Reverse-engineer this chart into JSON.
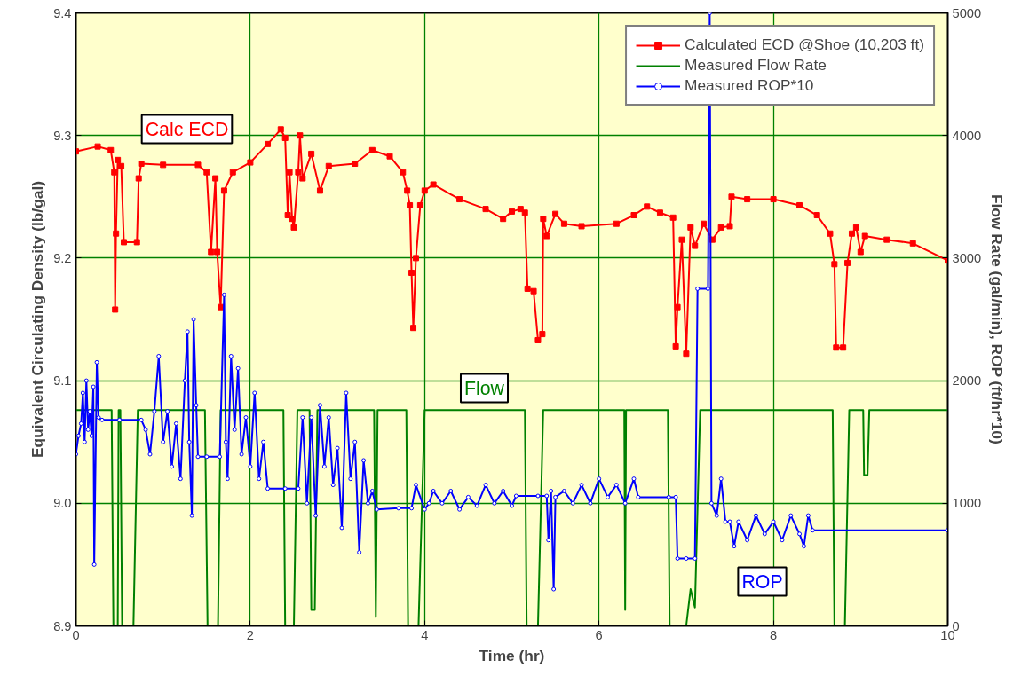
{
  "chart_data": {
    "type": "line",
    "xlabel": "Time (hr)",
    "ylabel": "Equivalent Circulating Density (lb/gal)",
    "y2label": "Flow Rate (gal/min), ROP (ft/hr*10)",
    "xlim": [
      0,
      10
    ],
    "xticks": [
      0,
      2,
      4,
      6,
      8,
      10
    ],
    "ylim": [
      8.9,
      9.4
    ],
    "yticks": [
      {
        "value": 8.9,
        "label": "8.9"
      },
      {
        "value": 9.0,
        "label": "9.0"
      },
      {
        "value": 9.1,
        "label": "9.1"
      },
      {
        "value": 9.2,
        "label": "9.2"
      },
      {
        "value": 9.3,
        "label": "9.3"
      },
      {
        "value": 9.4,
        "label": "9.4"
      }
    ],
    "y2lim": [
      0,
      5000
    ],
    "y2ticks": [
      0,
      1000,
      2000,
      3000,
      4000,
      5000
    ],
    "grid": true,
    "legend": "top right",
    "series": [
      {
        "name": "Calculated ECD @Shoe (10,203 ft)",
        "color": "#ff0000",
        "marker": "square",
        "x": [
          0,
          0.25,
          0.4,
          0.44,
          0.45,
          0.46,
          0.48,
          0.52,
          0.55,
          0.7,
          0.72,
          0.75,
          1.0,
          1.4,
          1.5,
          1.55,
          1.6,
          1.62,
          1.66,
          1.7,
          1.8,
          2.0,
          2.2,
          2.35,
          2.4,
          2.43,
          2.45,
          2.48,
          2.5,
          2.55,
          2.57,
          2.6,
          2.7,
          2.8,
          2.9,
          3.2,
          3.4,
          3.6,
          3.75,
          3.8,
          3.83,
          3.85,
          3.87,
          3.9,
          3.95,
          4.0,
          4.1,
          4.4,
          4.7,
          4.9,
          5.0,
          5.1,
          5.15,
          5.18,
          5.25,
          5.3,
          5.35,
          5.36,
          5.4,
          5.5,
          5.6,
          5.8,
          6.2,
          6.4,
          6.55,
          6.7,
          6.85,
          6.88,
          6.9,
          6.95,
          7.0,
          7.05,
          7.1,
          7.2,
          7.3,
          7.4,
          7.5,
          7.52,
          7.7,
          8.0,
          8.3,
          8.5,
          8.65,
          8.7,
          8.72,
          8.8,
          8.85,
          8.9,
          8.95,
          9.0,
          9.05,
          9.3,
          9.6,
          10.0
        ],
        "values": [
          9.287,
          9.291,
          9.288,
          9.27,
          9.158,
          9.22,
          9.28,
          9.275,
          9.213,
          9.213,
          9.265,
          9.277,
          9.276,
          9.276,
          9.27,
          9.205,
          9.265,
          9.205,
          9.16,
          9.255,
          9.27,
          9.278,
          9.293,
          9.305,
          9.298,
          9.235,
          9.27,
          9.232,
          9.225,
          9.27,
          9.3,
          9.265,
          9.285,
          9.255,
          9.275,
          9.277,
          9.288,
          9.283,
          9.27,
          9.255,
          9.243,
          9.188,
          9.143,
          9.2,
          9.243,
          9.255,
          9.26,
          9.248,
          9.24,
          9.232,
          9.238,
          9.24,
          9.237,
          9.175,
          9.173,
          9.133,
          9.138,
          9.232,
          9.218,
          9.236,
          9.228,
          9.226,
          9.228,
          9.235,
          9.242,
          9.237,
          9.233,
          9.128,
          9.16,
          9.215,
          9.122,
          9.225,
          9.21,
          9.228,
          9.215,
          9.225,
          9.226,
          9.25,
          9.248,
          9.248,
          9.243,
          9.235,
          9.22,
          9.195,
          9.127,
          9.127,
          9.196,
          9.22,
          9.225,
          9.205,
          9.218,
          9.215,
          9.212,
          9.198
        ]
      },
      {
        "name": "Measured Flow Rate",
        "color": "#008000",
        "marker": "none",
        "axis": "y2",
        "x": [
          0,
          0.41,
          0.43,
          0.48,
          0.49,
          0.51,
          0.53,
          0.66,
          0.71,
          1.48,
          1.51,
          1.63,
          1.66,
          2.38,
          2.4,
          2.5,
          2.54,
          2.68,
          2.7,
          2.74,
          2.77,
          3.42,
          3.44,
          3.46,
          3.79,
          3.81,
          3.93,
          4.0,
          5.15,
          5.17,
          5.3,
          5.36,
          6.29,
          6.3,
          6.31,
          6.79,
          6.81,
          7.0,
          7.05,
          7.1,
          7.16,
          8.68,
          8.7,
          8.82,
          8.87,
          9.03,
          9.04,
          9.08,
          9.1,
          10.0
        ],
        "values": [
          1760,
          1760,
          0,
          0,
          1760,
          1760,
          0,
          0,
          1760,
          1760,
          0,
          0,
          1760,
          1760,
          0,
          0,
          1760,
          1760,
          130,
          130,
          1760,
          1760,
          72,
          1760,
          1760,
          0,
          0,
          1760,
          1760,
          0,
          0,
          1760,
          1760,
          130,
          1760,
          1760,
          0,
          0,
          300,
          150,
          1760,
          1760,
          0,
          0,
          1760,
          1760,
          1230,
          1230,
          1760,
          1760
        ]
      },
      {
        "name": "Measured ROP*10",
        "color": "#0000ff",
        "marker": "circle",
        "axis": "y2",
        "x": [
          0,
          0.03,
          0.06,
          0.08,
          0.1,
          0.12,
          0.14,
          0.16,
          0.18,
          0.2,
          0.21,
          0.24,
          0.26,
          0.3,
          0.5,
          0.75,
          0.8,
          0.85,
          0.9,
          0.95,
          1.0,
          1.05,
          1.1,
          1.15,
          1.2,
          1.25,
          1.28,
          1.3,
          1.33,
          1.35,
          1.38,
          1.4,
          1.5,
          1.65,
          1.7,
          1.72,
          1.74,
          1.78,
          1.82,
          1.86,
          1.9,
          1.95,
          2.0,
          2.05,
          2.1,
          2.15,
          2.2,
          2.4,
          2.55,
          2.6,
          2.65,
          2.7,
          2.75,
          2.8,
          2.85,
          2.9,
          2.95,
          3.0,
          3.05,
          3.1,
          3.15,
          3.2,
          3.25,
          3.3,
          3.35,
          3.4,
          3.45,
          3.7,
          3.85,
          3.9,
          4.0,
          4.05,
          4.1,
          4.2,
          4.3,
          4.4,
          4.5,
          4.6,
          4.7,
          4.8,
          4.9,
          5.0,
          5.05,
          5.3,
          5.4,
          5.42,
          5.45,
          5.48,
          5.5,
          5.6,
          5.7,
          5.8,
          5.9,
          6.0,
          6.1,
          6.2,
          6.3,
          6.4,
          6.45,
          6.8,
          6.88,
          6.9,
          7.0,
          7.1,
          7.13,
          7.25,
          7.27,
          7.29,
          7.35,
          7.4,
          7.45,
          7.5,
          7.55,
          7.6,
          7.7,
          7.8,
          7.9,
          8.0,
          8.1,
          8.2,
          8.3,
          8.35,
          8.4,
          8.45,
          10.0
        ],
        "values": [
          1400,
          1550,
          1650,
          1900,
          1500,
          2000,
          1600,
          1750,
          1550,
          1950,
          500,
          2150,
          1700,
          1680,
          1680,
          1680,
          1600,
          1400,
          1750,
          2200,
          1500,
          1750,
          1300,
          1650,
          1200,
          2000,
          2400,
          1500,
          900,
          2500,
          1800,
          1380,
          1380,
          1380,
          2700,
          1500,
          1200,
          2200,
          1600,
          2100,
          1400,
          1700,
          1300,
          1900,
          1200,
          1500,
          1120,
          1120,
          1120,
          1700,
          1000,
          1700,
          900,
          1800,
          1300,
          1700,
          1150,
          1450,
          800,
          1900,
          1200,
          1500,
          600,
          1350,
          1000,
          1100,
          950,
          960,
          960,
          1150,
          950,
          1000,
          1100,
          1000,
          1100,
          950,
          1050,
          980,
          1150,
          1000,
          1100,
          980,
          1060,
          1060,
          1060,
          700,
          1100,
          300,
          1050,
          1100,
          1000,
          1150,
          1000,
          1200,
          1050,
          1150,
          1000,
          1200,
          1050,
          1050,
          1050,
          550,
          550,
          550,
          2750,
          2750,
          5000,
          1000,
          900,
          1200,
          850,
          850,
          650,
          850,
          700,
          900,
          750,
          850,
          700,
          900,
          750,
          650,
          900,
          780,
          780
        ]
      }
    ],
    "annotations": [
      "Calc ECD",
      "Flow",
      "ROP"
    ]
  }
}
